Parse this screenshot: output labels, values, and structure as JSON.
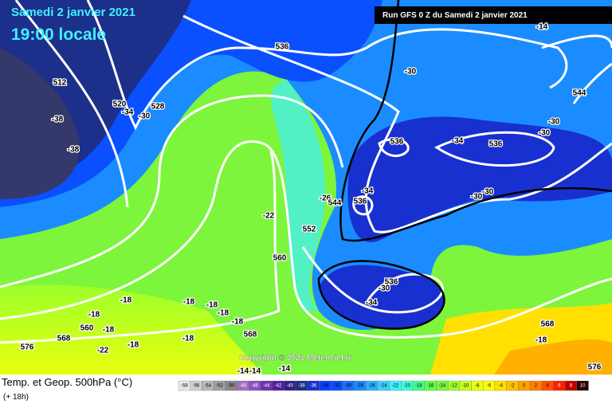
{
  "header": {
    "date": "Samedi 2 janvier 2021",
    "time": "19:00 locale",
    "run": "Run GFS 0 Z du Samedi 2 janvier 2021"
  },
  "footer": {
    "title": "Temp. et Geop. 500hPa (°C)",
    "step": "(+ 18h)",
    "copyright": "Copyright © 2021 Meteociel.fr"
  },
  "legend": {
    "values": [
      -58,
      -56,
      -54,
      -52,
      -50,
      -48,
      -46,
      -44,
      -42,
      -40,
      -38,
      -36,
      -34,
      -32,
      -30,
      -28,
      -26,
      -24,
      -22,
      -20,
      -18,
      -16,
      -14,
      -12,
      -10,
      -8,
      -6,
      -4,
      -2,
      0,
      2,
      4,
      6,
      8,
      10
    ]
  },
  "contour_labels": [
    512,
    520,
    -34,
    -30,
    528,
    -38,
    -38,
    536,
    -30,
    -14,
    544,
    -30,
    -30,
    536,
    -34,
    536,
    -30,
    -30,
    -34,
    536,
    -26,
    544,
    -22,
    552,
    560,
    536,
    -30,
    -34,
    -18,
    -18,
    -18,
    -18,
    -18,
    568,
    568,
    576,
    576,
    568,
    560,
    -18,
    -22,
    -18,
    -18,
    -18,
    -14,
    -14,
    -14,
    -18
  ]
}
